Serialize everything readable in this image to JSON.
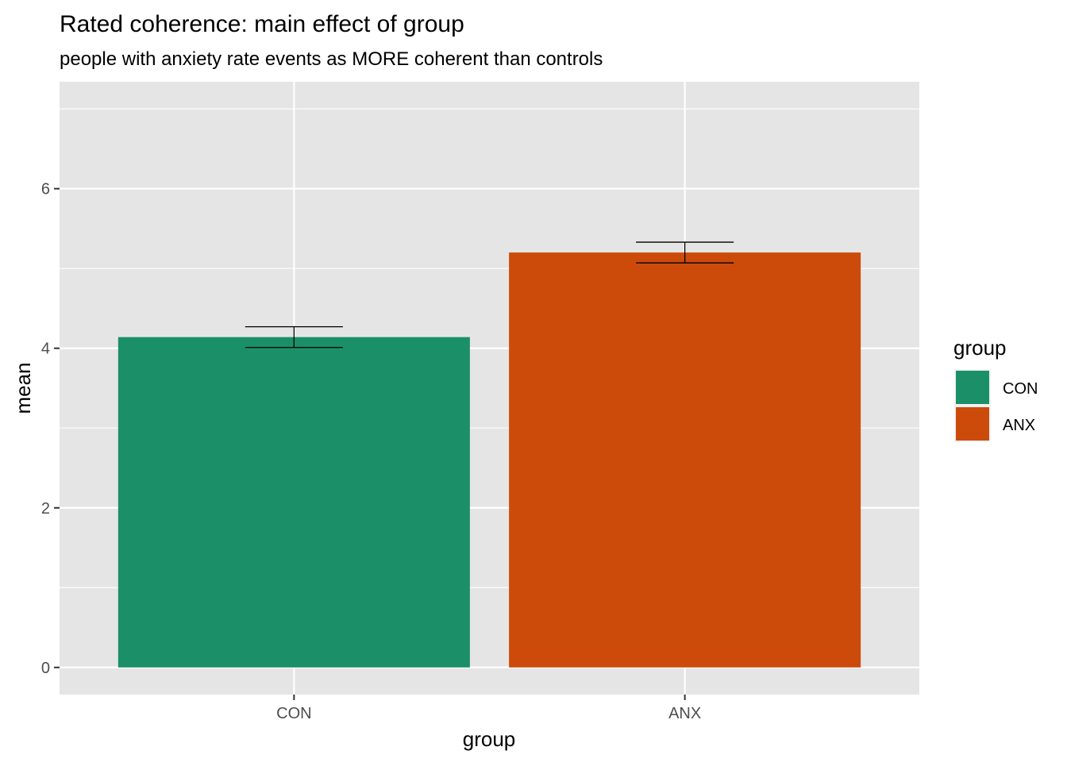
{
  "chart_data": {
    "type": "bar",
    "title": "Rated coherence: main effect of group",
    "subtitle": "people with anxiety rate events as MORE coherent than controls",
    "xlabel": "group",
    "ylabel": "mean",
    "categories": [
      "CON",
      "ANX"
    ],
    "values": [
      4.14,
      5.2
    ],
    "error_bars": [
      {
        "lower": 4.01,
        "upper": 4.27
      },
      {
        "lower": 5.07,
        "upper": 5.33
      }
    ],
    "ylim": [
      -0.34,
      7.34
    ],
    "y_ticks": [
      0,
      2,
      4,
      6
    ],
    "grid": true,
    "legend": {
      "title": "group",
      "position": "right",
      "entries": [
        "CON",
        "ANX"
      ]
    },
    "colors": [
      "#1b9068",
      "#cc4b0a"
    ],
    "panel_background": "#e5e5e5",
    "grid_color": "#ffffff",
    "error_bar_color": "#000000"
  }
}
